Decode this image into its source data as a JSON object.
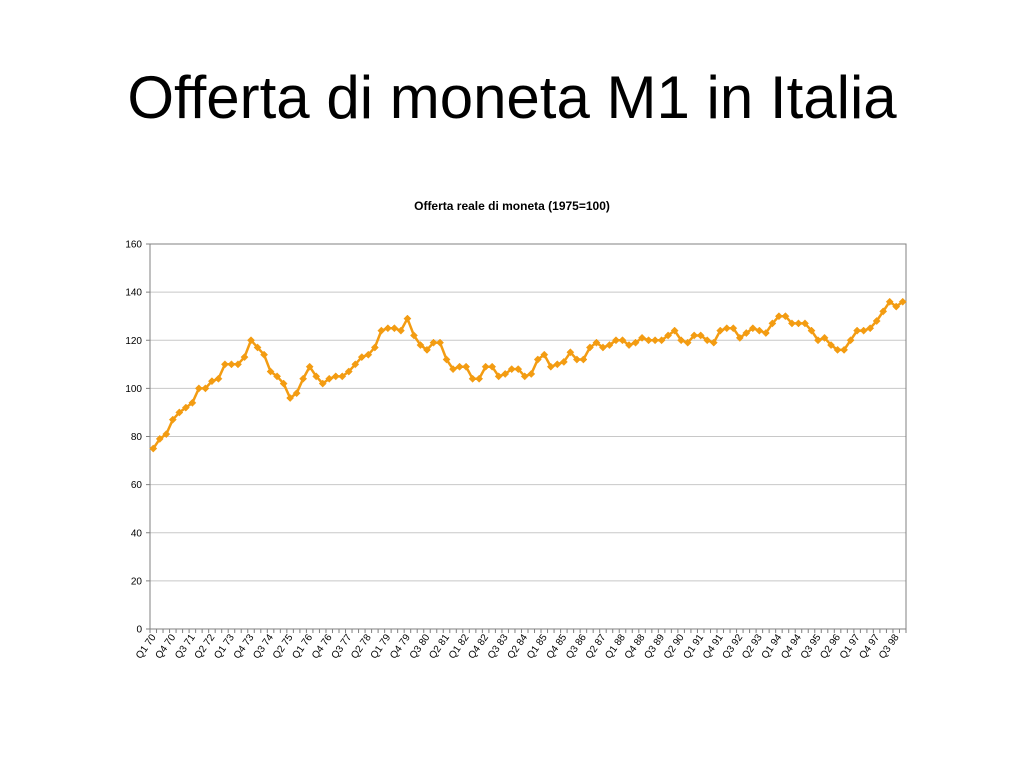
{
  "slide": {
    "title": "Offerta di moneta M1 in Italia"
  },
  "colors": {
    "series": "#F39C12",
    "grid": "#C8C8C8",
    "axis": "#808080"
  },
  "chart_data": {
    "type": "line",
    "title": "Offerta reale di moneta (1975=100)",
    "xlabel": "",
    "ylabel": "",
    "ylim": [
      0,
      160
    ],
    "yticks": [
      0,
      20,
      40,
      60,
      80,
      100,
      120,
      140,
      160
    ],
    "grid": true,
    "legend": "none",
    "marker": "diamond",
    "x_labels_shown": [
      "Q1 70",
      "Q4 70",
      "Q3 71",
      "Q2 72",
      "Q1 73",
      "Q4 73",
      "Q3 74",
      "Q2 75",
      "Q1 76",
      "Q4 76",
      "Q3 77",
      "Q2 78",
      "Q1 79",
      "Q4 79",
      "Q3 80",
      "Q2 81",
      "Q1 82",
      "Q4 82",
      "Q3 83",
      "Q2 84",
      "Q1 85",
      "Q4 85",
      "Q3 86",
      "Q2 87",
      "Q1 88",
      "Q4 88",
      "Q3 89",
      "Q2 90",
      "Q1 91",
      "Q4 91",
      "Q3 92",
      "Q2 93",
      "Q1 94",
      "Q4 94",
      "Q3 95",
      "Q2 96",
      "Q1 97",
      "Q4 97",
      "Q3 98"
    ],
    "x": [
      "Q1 70",
      "Q2 70",
      "Q3 70",
      "Q4 70",
      "Q1 71",
      "Q2 71",
      "Q3 71",
      "Q4 71",
      "Q1 72",
      "Q2 72",
      "Q3 72",
      "Q4 72",
      "Q1 73",
      "Q2 73",
      "Q3 73",
      "Q4 73",
      "Q1 74",
      "Q2 74",
      "Q3 74",
      "Q4 74",
      "Q1 75",
      "Q2 75",
      "Q3 75",
      "Q4 75",
      "Q1 76",
      "Q2 76",
      "Q3 76",
      "Q4 76",
      "Q1 77",
      "Q2 77",
      "Q3 77",
      "Q4 77",
      "Q1 78",
      "Q2 78",
      "Q3 78",
      "Q4 78",
      "Q1 79",
      "Q2 79",
      "Q3 79",
      "Q4 79",
      "Q1 80",
      "Q2 80",
      "Q3 80",
      "Q4 80",
      "Q1 81",
      "Q2 81",
      "Q3 81",
      "Q4 81",
      "Q1 82",
      "Q2 82",
      "Q3 82",
      "Q4 82",
      "Q1 83",
      "Q2 83",
      "Q3 83",
      "Q4 83",
      "Q1 84",
      "Q2 84",
      "Q3 84",
      "Q4 84",
      "Q1 85",
      "Q2 85",
      "Q3 85",
      "Q4 85",
      "Q1 86",
      "Q2 86",
      "Q3 86",
      "Q4 86",
      "Q1 87",
      "Q2 87",
      "Q3 87",
      "Q4 87",
      "Q1 88",
      "Q2 88",
      "Q3 88",
      "Q4 88",
      "Q1 89",
      "Q2 89",
      "Q3 89",
      "Q4 89",
      "Q1 90",
      "Q2 90",
      "Q3 90",
      "Q4 90",
      "Q1 91",
      "Q2 91",
      "Q3 91",
      "Q4 91",
      "Q1 92",
      "Q2 92",
      "Q3 92",
      "Q4 92",
      "Q1 93",
      "Q2 93",
      "Q3 93",
      "Q4 93",
      "Q1 94",
      "Q2 94",
      "Q3 94",
      "Q4 94",
      "Q1 95",
      "Q2 95",
      "Q3 95",
      "Q4 95",
      "Q1 96",
      "Q2 96",
      "Q3 96",
      "Q4 96",
      "Q1 97",
      "Q2 97",
      "Q3 97",
      "Q4 97",
      "Q1 98",
      "Q2 98",
      "Q3 98",
      "Q4 98"
    ],
    "series": [
      {
        "values": [
          75,
          79,
          81,
          87,
          90,
          92,
          94,
          100,
          100,
          103,
          104,
          110,
          110,
          110,
          113,
          120,
          117,
          114,
          107,
          105,
          102,
          96,
          98,
          104,
          109,
          105,
          102,
          104,
          105,
          105,
          107,
          110,
          113,
          114,
          117,
          124,
          125,
          125,
          124,
          129,
          122,
          118,
          116,
          119,
          119,
          112,
          108,
          109,
          109,
          104,
          104,
          109,
          109,
          105,
          106,
          108,
          108,
          105,
          106,
          112,
          114,
          109,
          110,
          111,
          115,
          112,
          112,
          117,
          119,
          117,
          118,
          120,
          120,
          118,
          119,
          121,
          120,
          120,
          120,
          122,
          124,
          120,
          119,
          122,
          122,
          120,
          119,
          124,
          125,
          125,
          121,
          123,
          125,
          124,
          123,
          127,
          130,
          130,
          127,
          127,
          127,
          124,
          120,
          121,
          118,
          116,
          116,
          120,
          124,
          124,
          125,
          128,
          132,
          136,
          134,
          136
        ]
      }
    ]
  }
}
